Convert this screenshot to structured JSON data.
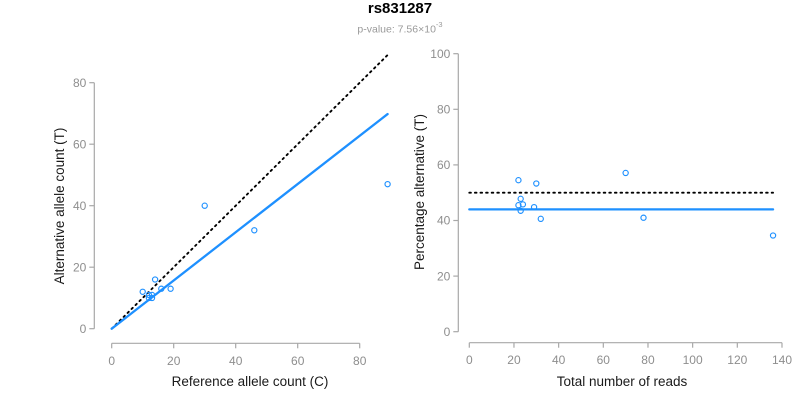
{
  "header": {
    "title": "rs831287",
    "pvalue_text": "p-value: 7.56×10",
    "pvalue_exponent": "-3"
  },
  "colors": {
    "accent_blue": "#1E90FF",
    "line_black": "#000000",
    "axis_line_gray": "#a8a8a8",
    "tick_label_gray": "#8e8e8e",
    "axis_title_color": "#1a1a1a"
  },
  "chart_data": [
    {
      "type": "scatter",
      "title": "rs831287",
      "xlabel": "Reference allele count (C)",
      "ylabel": "Alternative allele count (T)",
      "xticks": [
        0,
        20,
        40,
        60,
        80
      ],
      "yticks": [
        0,
        20,
        40,
        60,
        80
      ],
      "xlim": [
        0,
        89
      ],
      "ylim": [
        0,
        89
      ],
      "grid": false,
      "legend": "none",
      "points": [
        [
          10,
          12
        ],
        [
          12,
          10
        ],
        [
          12,
          11
        ],
        [
          13,
          10
        ],
        [
          13,
          11
        ],
        [
          14,
          16
        ],
        [
          16,
          13
        ],
        [
          19,
          13
        ],
        [
          30,
          40
        ],
        [
          46,
          32
        ],
        [
          89,
          47
        ]
      ],
      "lines": [
        {
          "name": "identity-line",
          "style": "dotted",
          "color": "black",
          "x1": 0,
          "y1": 0,
          "x2": 89,
          "y2": 89
        },
        {
          "name": "fit-line",
          "style": "solid",
          "color": "blue",
          "x1": 0,
          "y1": 0,
          "x2": 89,
          "y2": 69.8
        }
      ]
    },
    {
      "type": "scatter",
      "title": "rs831287",
      "xlabel": "Total number of reads",
      "ylabel": "Percentage alternative (T)",
      "xticks": [
        0,
        20,
        40,
        60,
        80,
        100,
        120,
        140
      ],
      "yticks": [
        0,
        20,
        40,
        60,
        80,
        100
      ],
      "xlim": [
        0,
        140
      ],
      "ylim": [
        0,
        100
      ],
      "grid": false,
      "legend": "none",
      "points": [
        [
          22,
          54.5
        ],
        [
          22,
          45.5
        ],
        [
          23,
          47.8
        ],
        [
          23,
          43.5
        ],
        [
          24,
          45.8
        ],
        [
          29,
          44.8
        ],
        [
          30,
          53.3
        ],
        [
          32,
          40.6
        ],
        [
          70,
          57.1
        ],
        [
          78,
          41.0
        ],
        [
          136,
          34.6
        ]
      ],
      "lines": [
        {
          "name": "null-50pct-line",
          "style": "dotted",
          "color": "black",
          "x1": 0,
          "y1": 50,
          "x2": 136,
          "y2": 50
        },
        {
          "name": "fit-line",
          "style": "solid",
          "color": "blue",
          "x1": 0,
          "y1": 44,
          "x2": 136,
          "y2": 44
        }
      ]
    }
  ]
}
